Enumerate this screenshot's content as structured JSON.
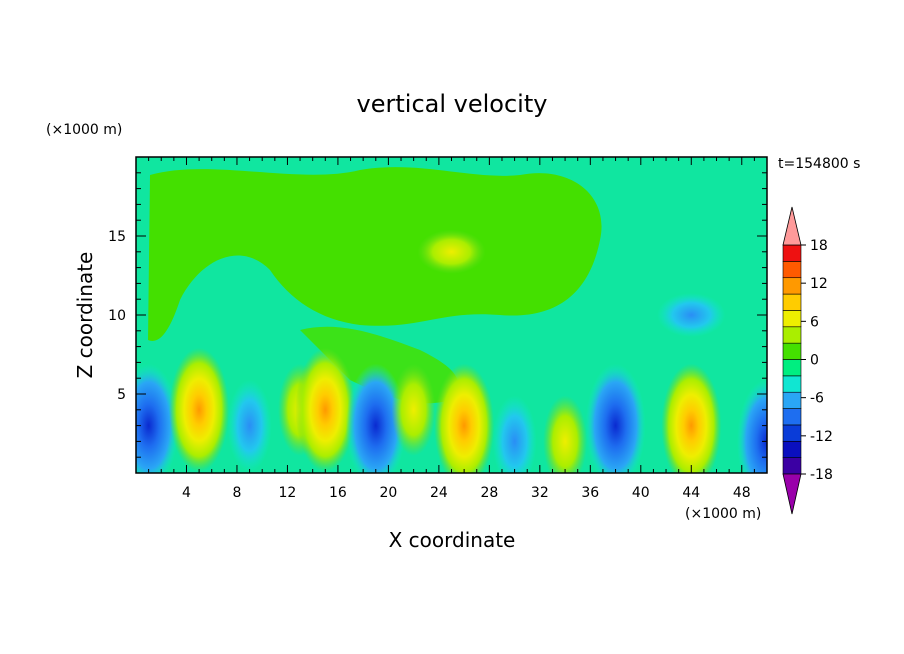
{
  "chart_data": {
    "type": "heatmap",
    "title": "vertical velocity",
    "xlabel": "X coordinate",
    "ylabel": "Z coordinate",
    "x_unit": "(×1000 m)",
    "y_unit": "(×1000 m)",
    "time_label": "t=154800 s",
    "xlim": [
      0,
      50
    ],
    "ylim": [
      0,
      20
    ],
    "x_ticks": [
      4,
      8,
      12,
      16,
      20,
      24,
      28,
      32,
      36,
      40,
      44,
      48
    ],
    "y_ticks": [
      5,
      10,
      15
    ],
    "colorbar": {
      "ticks": [
        18,
        12,
        6,
        0,
        -6,
        -12,
        -18
      ],
      "levels": [
        -21,
        -18,
        -15,
        -12,
        -9,
        -6,
        -3,
        0,
        3,
        6,
        9,
        12,
        15,
        18,
        21
      ],
      "colors": [
        "#9900aa",
        "#3b00a3",
        "#0a0fbf",
        "#0a3cd8",
        "#1e6ef0",
        "#2aa6f5",
        "#10e6d2",
        "#00ee80",
        "#44e000",
        "#aaee00",
        "#eeee00",
        "#ffcc00",
        "#ff9900",
        "#ff5a00",
        "#ee1111",
        "#ff9a9a"
      ]
    },
    "cells": [
      {
        "x": 1,
        "z": 3,
        "w": -8
      },
      {
        "x": 5,
        "z": 4,
        "w": 9
      },
      {
        "x": 9,
        "z": 3,
        "w": -6
      },
      {
        "x": 13,
        "z": 4,
        "w": 7
      },
      {
        "x": 15,
        "z": 4,
        "w": 9
      },
      {
        "x": 19,
        "z": 3,
        "w": -8
      },
      {
        "x": 22,
        "z": 4,
        "w": 3
      },
      {
        "x": 26,
        "z": 3,
        "w": 11
      },
      {
        "x": 30,
        "z": 2,
        "w": -7
      },
      {
        "x": 34,
        "z": 2,
        "w": 7
      },
      {
        "x": 38,
        "z": 3,
        "w": -12
      },
      {
        "x": 44,
        "z": 3,
        "w": 9
      },
      {
        "x": 50,
        "z": 2,
        "w": -12
      },
      {
        "x": 25,
        "z": 14,
        "w": 1
      },
      {
        "x": 44,
        "z": 10,
        "w": -1
      }
    ]
  }
}
